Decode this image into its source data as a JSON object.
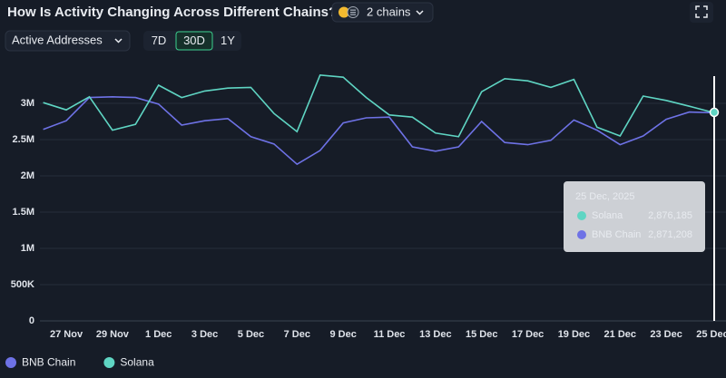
{
  "chart_data": {
    "type": "line",
    "title": "How Is Activity Changing Across Different Chains?",
    "controls": {
      "metric": "Active Addresses",
      "chains": "2 chains",
      "ranges": [
        "7D",
        "30D",
        "1Y"
      ],
      "active_range": "30D"
    },
    "categories": [
      null,
      "27 Nov",
      null,
      "29 Nov",
      null,
      "1 Dec",
      null,
      "3 Dec",
      null,
      "5 Dec",
      null,
      "7 Dec",
      null,
      "9 Dec",
      null,
      "11 Dec",
      null,
      "13 Dec",
      null,
      "15 Dec",
      null,
      "17 Dec",
      null,
      "19 Dec",
      null,
      "21 Dec",
      null,
      "23 Dec",
      null,
      "25 Dec"
    ],
    "series": [
      {
        "name": "BNB Chain",
        "color": "#6e72e6",
        "values": [
          2640000,
          2760000,
          3080000,
          3090000,
          3080000,
          2990000,
          2700000,
          2760000,
          2790000,
          2540000,
          2440000,
          2160000,
          2350000,
          2730000,
          2800000,
          2810000,
          2400000,
          2340000,
          2400000,
          2750000,
          2460000,
          2430000,
          2490000,
          2770000,
          2630000,
          2430000,
          2550000,
          2780000,
          2880000,
          2871208
        ],
        "value_labels": [
          null,
          null,
          null,
          null,
          null,
          null,
          null,
          null,
          null,
          null,
          null,
          null,
          null,
          null,
          null,
          null,
          null,
          null,
          null,
          null,
          null,
          null,
          null,
          null,
          null,
          null,
          null,
          null,
          null,
          "2,871,208"
        ]
      },
      {
        "name": "Solana",
        "color": "#5fd5c3",
        "values": [
          3010000,
          2910000,
          3090000,
          2630000,
          2710000,
          3250000,
          3080000,
          3170000,
          3210000,
          3220000,
          2860000,
          2610000,
          3390000,
          3360000,
          3080000,
          2840000,
          2810000,
          2590000,
          2540000,
          3160000,
          3340000,
          3310000,
          3220000,
          3330000,
          2670000,
          2550000,
          3100000,
          3040000,
          2960000,
          2876185
        ],
        "value_labels": [
          null,
          null,
          null,
          null,
          null,
          null,
          null,
          null,
          null,
          null,
          null,
          null,
          null,
          null,
          null,
          null,
          null,
          null,
          null,
          null,
          null,
          null,
          null,
          null,
          null,
          null,
          null,
          null,
          null,
          "2,876,185"
        ]
      }
    ],
    "tooltip": {
      "title": "25 Dec, 2025",
      "index": 29
    },
    "ylim": [
      0,
      3400000
    ],
    "yticks": [
      0,
      {
        "value": 500000,
        "label": "500K"
      },
      {
        "value": 1000000,
        "label": "1M"
      },
      {
        "value": 1500000,
        "label": "1.5M"
      },
      {
        "value": 2000000,
        "label": "2M"
      },
      {
        "value": 2500000,
        "label": "2.5M"
      },
      {
        "value": 3000000,
        "label": "3M"
      }
    ],
    "grid": true
  }
}
